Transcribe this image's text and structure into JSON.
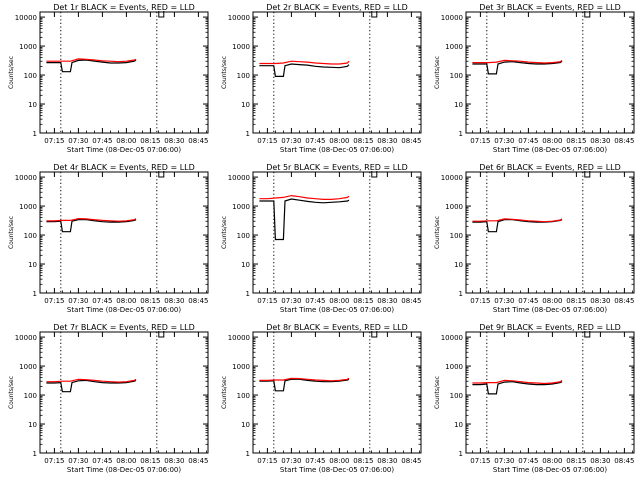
{
  "x_ticks": [
    "07:15",
    "07:30",
    "07:45",
    "08:00",
    "08:15",
    "08:30",
    "08:45"
  ],
  "y_ticks": [
    "1",
    "10",
    "100",
    "1000",
    "10000"
  ],
  "ylabel": "Counts/sec",
  "xlabel": "Start Time (08-Dec-05 07:06:00)",
  "colors": {
    "events": "#000000",
    "lld": "#ff0000"
  },
  "chart_data": [
    {
      "type": "line",
      "title": "Det 1r BLACK = Events, RED = LLD",
      "xlabel": "Start Time (08-Dec-05 07:06:00)",
      "ylabel": "Counts/sec",
      "xlim": [
        "07:06",
        "08:51"
      ],
      "ylim": [
        1,
        15000
      ],
      "yscale": "log",
      "markers": [
        "07:19",
        "08:19"
      ],
      "series": [
        {
          "name": "Events",
          "color": "#000000",
          "x": [
            "07:10",
            "07:15",
            "07:19",
            "07:20",
            "07:25",
            "07:26",
            "07:30",
            "07:35",
            "07:40",
            "07:45",
            "07:50",
            "07:55",
            "08:00",
            "08:05",
            "08:06"
          ],
          "y": [
            270,
            270,
            270,
            130,
            130,
            270,
            320,
            330,
            300,
            280,
            260,
            260,
            270,
            300,
            330
          ]
        },
        {
          "name": "LLD",
          "color": "#ff0000",
          "x": [
            "07:10",
            "07:15",
            "07:20",
            "07:25",
            "07:30",
            "07:35",
            "07:40",
            "07:45",
            "07:50",
            "07:55",
            "08:00",
            "08:05",
            "08:06"
          ],
          "y": [
            300,
            300,
            300,
            300,
            360,
            350,
            330,
            310,
            300,
            290,
            300,
            330,
            350
          ]
        }
      ]
    },
    {
      "type": "line",
      "title": "Det 2r BLACK = Events, RED = LLD",
      "xlabel": "Start Time (08-Dec-05 07:06:00)",
      "ylabel": "Counts/sec",
      "xlim": [
        "07:06",
        "08:51"
      ],
      "ylim": [
        1,
        15000
      ],
      "yscale": "log",
      "markers": [
        "07:19",
        "08:19"
      ],
      "series": [
        {
          "name": "Events",
          "color": "#000000",
          "x": [
            "07:10",
            "07:15",
            "07:19",
            "07:20",
            "07:25",
            "07:26",
            "07:30",
            "07:35",
            "07:40",
            "07:45",
            "07:50",
            "07:55",
            "08:00",
            "08:05",
            "08:06"
          ],
          "y": [
            210,
            210,
            210,
            90,
            90,
            210,
            240,
            230,
            220,
            200,
            190,
            185,
            180,
            200,
            230
          ]
        },
        {
          "name": "LLD",
          "color": "#ff0000",
          "x": [
            "07:10",
            "07:15",
            "07:20",
            "07:25",
            "07:30",
            "07:35",
            "07:40",
            "07:45",
            "07:50",
            "07:55",
            "08:00",
            "08:05",
            "08:06"
          ],
          "y": [
            250,
            250,
            250,
            260,
            300,
            290,
            280,
            260,
            250,
            240,
            240,
            260,
            300
          ]
        }
      ]
    },
    {
      "type": "line",
      "title": "Det 3r BLACK = Events, RED = LLD",
      "xlabel": "Start Time (08-Dec-05 07:06:00)",
      "ylabel": "Counts/sec",
      "xlim": [
        "07:06",
        "08:51"
      ],
      "ylim": [
        1,
        15000
      ],
      "yscale": "log",
      "markers": [
        "07:19",
        "08:19"
      ],
      "series": [
        {
          "name": "Events",
          "color": "#000000",
          "x": [
            "07:10",
            "07:15",
            "07:19",
            "07:20",
            "07:25",
            "07:26",
            "07:30",
            "07:35",
            "07:40",
            "07:45",
            "07:50",
            "07:55",
            "08:00",
            "08:05",
            "08:06"
          ],
          "y": [
            240,
            240,
            240,
            110,
            110,
            240,
            280,
            290,
            270,
            250,
            240,
            240,
            250,
            270,
            300
          ]
        },
        {
          "name": "LLD",
          "color": "#ff0000",
          "x": [
            "07:10",
            "07:15",
            "07:20",
            "07:25",
            "07:30",
            "07:35",
            "07:40",
            "07:45",
            "07:50",
            "07:55",
            "08:00",
            "08:05",
            "08:06"
          ],
          "y": [
            270,
            270,
            270,
            280,
            320,
            310,
            300,
            280,
            270,
            260,
            270,
            290,
            320
          ]
        }
      ]
    },
    {
      "type": "line",
      "title": "Det 4r BLACK = Events, RED = LLD",
      "xlabel": "Start Time (08-Dec-05 07:06:00)",
      "ylabel": "Counts/sec",
      "xlim": [
        "07:06",
        "08:51"
      ],
      "ylim": [
        1,
        15000
      ],
      "yscale": "log",
      "markers": [
        "07:19",
        "08:19"
      ],
      "series": [
        {
          "name": "Events",
          "color": "#000000",
          "x": [
            "07:10",
            "07:15",
            "07:19",
            "07:20",
            "07:25",
            "07:26",
            "07:30",
            "07:35",
            "07:40",
            "07:45",
            "07:50",
            "07:55",
            "08:00",
            "08:05",
            "08:06"
          ],
          "y": [
            290,
            290,
            300,
            130,
            130,
            300,
            340,
            340,
            310,
            290,
            280,
            280,
            290,
            320,
            340
          ]
        },
        {
          "name": "LLD",
          "color": "#ff0000",
          "x": [
            "07:10",
            "07:15",
            "07:20",
            "07:25",
            "07:30",
            "07:35",
            "07:40",
            "07:45",
            "07:50",
            "07:55",
            "08:00",
            "08:05",
            "08:06"
          ],
          "y": [
            310,
            310,
            320,
            320,
            370,
            360,
            340,
            320,
            310,
            300,
            310,
            340,
            370
          ]
        }
      ]
    },
    {
      "type": "line",
      "title": "Det 5r BLACK = Events, RED = LLD",
      "xlabel": "Start Time (08-Dec-05 07:06:00)",
      "ylabel": "Counts/sec",
      "xlim": [
        "07:06",
        "08:51"
      ],
      "ylim": [
        1,
        15000
      ],
      "yscale": "log",
      "markers": [
        "07:19",
        "08:19"
      ],
      "series": [
        {
          "name": "Events",
          "color": "#000000",
          "x": [
            "07:10",
            "07:15",
            "07:19",
            "07:20",
            "07:25",
            "07:26",
            "07:30",
            "07:35",
            "07:40",
            "07:45",
            "07:50",
            "07:55",
            "08:00",
            "08:05",
            "08:06"
          ],
          "y": [
            1500,
            1500,
            1500,
            70,
            70,
            1500,
            1750,
            1600,
            1450,
            1350,
            1300,
            1350,
            1400,
            1500,
            1600
          ]
        },
        {
          "name": "LLD",
          "color": "#ff0000",
          "x": [
            "07:10",
            "07:15",
            "07:20",
            "07:25",
            "07:30",
            "07:35",
            "07:40",
            "07:45",
            "07:50",
            "07:55",
            "08:00",
            "08:05",
            "08:06"
          ],
          "y": [
            1800,
            1800,
            1900,
            2000,
            2300,
            2100,
            1900,
            1800,
            1700,
            1700,
            1800,
            2000,
            2200
          ]
        }
      ]
    },
    {
      "type": "line",
      "title": "Det 6r BLACK = Events, RED = LLD",
      "xlabel": "Start Time (08-Dec-05 07:06:00)",
      "ylabel": "Counts/sec",
      "xlim": [
        "07:06",
        "08:51"
      ],
      "ylim": [
        1,
        15000
      ],
      "yscale": "log",
      "markers": [
        "07:19",
        "08:19"
      ],
      "series": [
        {
          "name": "Events",
          "color": "#000000",
          "x": [
            "07:10",
            "07:15",
            "07:19",
            "07:20",
            "07:25",
            "07:26",
            "07:30",
            "07:35",
            "07:40",
            "07:45",
            "07:50",
            "07:55",
            "08:00",
            "08:05",
            "08:06"
          ],
          "y": [
            280,
            280,
            290,
            130,
            130,
            290,
            340,
            340,
            310,
            290,
            280,
            280,
            290,
            320,
            340
          ]
        },
        {
          "name": "LLD",
          "color": "#ff0000",
          "x": [
            "07:10",
            "07:15",
            "07:20",
            "07:25",
            "07:30",
            "07:35",
            "07:40",
            "07:45",
            "07:50",
            "07:55",
            "08:00",
            "08:05",
            "08:06"
          ],
          "y": [
            300,
            300,
            310,
            310,
            360,
            350,
            330,
            310,
            300,
            290,
            300,
            330,
            360
          ]
        }
      ]
    },
    {
      "type": "line",
      "title": "Det 7r BLACK = Events, RED = LLD",
      "xlabel": "Start Time (08-Dec-05 07:06:00)",
      "ylabel": "Counts/sec",
      "xlim": [
        "07:06",
        "08:51"
      ],
      "ylim": [
        1,
        15000
      ],
      "yscale": "log",
      "markers": [
        "07:19",
        "08:19"
      ],
      "series": [
        {
          "name": "Events",
          "color": "#000000",
          "x": [
            "07:10",
            "07:15",
            "07:19",
            "07:20",
            "07:25",
            "07:26",
            "07:30",
            "07:35",
            "07:40",
            "07:45",
            "07:50",
            "07:55",
            "08:00",
            "08:05",
            "08:06"
          ],
          "y": [
            260,
            260,
            270,
            130,
            130,
            270,
            310,
            320,
            290,
            270,
            260,
            260,
            270,
            300,
            320
          ]
        },
        {
          "name": "LLD",
          "color": "#ff0000",
          "x": [
            "07:10",
            "07:15",
            "07:20",
            "07:25",
            "07:30",
            "07:35",
            "07:40",
            "07:45",
            "07:50",
            "07:55",
            "08:00",
            "08:05",
            "08:06"
          ],
          "y": [
            290,
            290,
            300,
            300,
            350,
            340,
            320,
            300,
            290,
            280,
            290,
            320,
            350
          ]
        }
      ]
    },
    {
      "type": "line",
      "title": "Det 8r BLACK = Events, RED = LLD",
      "xlabel": "Start Time (08-Dec-05 07:06:00)",
      "ylabel": "Counts/sec",
      "xlim": [
        "07:06",
        "08:51"
      ],
      "ylim": [
        1,
        15000
      ],
      "yscale": "log",
      "markers": [
        "07:19",
        "08:19"
      ],
      "series": [
        {
          "name": "Events",
          "color": "#000000",
          "x": [
            "07:10",
            "07:15",
            "07:19",
            "07:20",
            "07:25",
            "07:26",
            "07:30",
            "07:35",
            "07:40",
            "07:45",
            "07:50",
            "07:55",
            "08:00",
            "08:05",
            "08:06"
          ],
          "y": [
            300,
            300,
            310,
            140,
            140,
            310,
            350,
            350,
            320,
            300,
            290,
            290,
            300,
            330,
            350
          ]
        },
        {
          "name": "LLD",
          "color": "#ff0000",
          "x": [
            "07:10",
            "07:15",
            "07:20",
            "07:25",
            "07:30",
            "07:35",
            "07:40",
            "07:45",
            "07:50",
            "07:55",
            "08:00",
            "08:05",
            "08:06"
          ],
          "y": [
            320,
            320,
            330,
            330,
            380,
            370,
            350,
            330,
            320,
            310,
            320,
            350,
            380
          ]
        }
      ]
    },
    {
      "type": "line",
      "title": "Det 9r BLACK = Events, RED = LLD",
      "xlabel": "Start Time (08-Dec-05 07:06:00)",
      "ylabel": "Counts/sec",
      "xlim": [
        "07:06",
        "08:51"
      ],
      "ylim": [
        1,
        15000
      ],
      "yscale": "log",
      "markers": [
        "07:19",
        "08:19"
      ],
      "series": [
        {
          "name": "Events",
          "color": "#000000",
          "x": [
            "07:10",
            "07:15",
            "07:19",
            "07:20",
            "07:25",
            "07:26",
            "07:30",
            "07:35",
            "07:40",
            "07:45",
            "07:50",
            "07:55",
            "08:00",
            "08:05",
            "08:06"
          ],
          "y": [
            230,
            230,
            240,
            110,
            110,
            240,
            280,
            290,
            260,
            240,
            230,
            230,
            240,
            270,
            290
          ]
        },
        {
          "name": "LLD",
          "color": "#ff0000",
          "x": [
            "07:10",
            "07:15",
            "07:20",
            "07:25",
            "07:30",
            "07:35",
            "07:40",
            "07:45",
            "07:50",
            "07:55",
            "08:00",
            "08:05",
            "08:06"
          ],
          "y": [
            260,
            260,
            270,
            270,
            320,
            310,
            290,
            270,
            260,
            250,
            260,
            290,
            320
          ]
        }
      ]
    }
  ]
}
